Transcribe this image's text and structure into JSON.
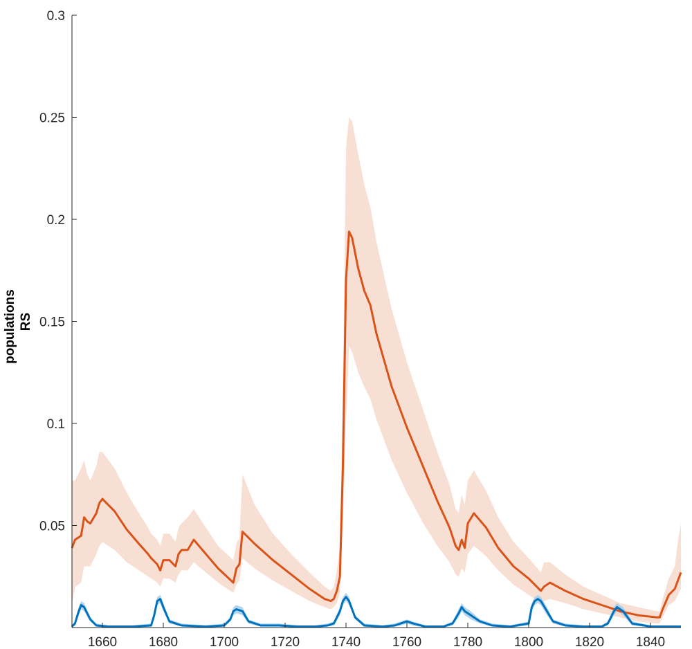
{
  "chart_data": {
    "type": "line",
    "title": "",
    "xlabel": "",
    "ylabel_lines": [
      "populations",
      "RS"
    ],
    "xlim": [
      1650,
      1850
    ],
    "ylim": [
      0,
      0.3
    ],
    "x_ticks": [
      1660,
      1680,
      1700,
      1720,
      1740,
      1760,
      1780,
      1800,
      1820,
      1840
    ],
    "x_tick_labels": [
      "1660",
      "1680",
      "1700",
      "1720",
      "1740",
      "1760",
      "1780",
      "1800",
      "1820",
      "1840"
    ],
    "y_ticks": [
      0.05,
      0.1,
      0.15,
      0.2,
      0.25,
      0.3
    ],
    "y_tick_labels": [
      "0.05",
      "0.1",
      "0.15",
      "0.2",
      "0.25",
      "0.3"
    ],
    "grid": false,
    "legend": "none",
    "series": [
      {
        "color": "#D95319",
        "band_color": "#F7D9CC",
        "x": [
          1650,
          1651,
          1653,
          1654,
          1655,
          1656,
          1658,
          1659,
          1660,
          1664,
          1668,
          1672,
          1675,
          1676,
          1678,
          1679,
          1680,
          1682,
          1684,
          1685,
          1686,
          1688,
          1690,
          1694,
          1698,
          1703,
          1704,
          1705,
          1706,
          1710,
          1716,
          1722,
          1728,
          1733,
          1735,
          1736,
          1737,
          1738,
          1739,
          1740,
          1741,
          1742,
          1744,
          1746,
          1748,
          1750,
          1755,
          1760,
          1765,
          1770,
          1774,
          1776,
          1777,
          1778,
          1779,
          1780,
          1782,
          1786,
          1790,
          1795,
          1800,
          1804,
          1805,
          1807,
          1812,
          1818,
          1824,
          1830,
          1836,
          1842,
          1843,
          1844,
          1846,
          1848,
          1849,
          1850
        ],
        "y": [
          0.039,
          0.043,
          0.045,
          0.054,
          0.052,
          0.051,
          0.056,
          0.061,
          0.063,
          0.057,
          0.048,
          0.041,
          0.036,
          0.034,
          0.031,
          0.028,
          0.033,
          0.033,
          0.03,
          0.036,
          0.038,
          0.038,
          0.043,
          0.036,
          0.029,
          0.022,
          0.029,
          0.031,
          0.047,
          0.041,
          0.033,
          0.026,
          0.019,
          0.014,
          0.013,
          0.014,
          0.018,
          0.025,
          0.08,
          0.17,
          0.194,
          0.191,
          0.176,
          0.165,
          0.158,
          0.144,
          0.118,
          0.098,
          0.08,
          0.062,
          0.049,
          0.04,
          0.038,
          0.043,
          0.039,
          0.051,
          0.056,
          0.049,
          0.039,
          0.03,
          0.024,
          0.018,
          0.02,
          0.022,
          0.018,
          0.014,
          0.011,
          0.008,
          0.006,
          0.005,
          0.005,
          0.009,
          0.016,
          0.019,
          0.023,
          0.027
        ],
        "lower": [
          0.012,
          0.02,
          0.022,
          0.03,
          0.03,
          0.03,
          0.036,
          0.04,
          0.042,
          0.038,
          0.032,
          0.028,
          0.025,
          0.024,
          0.022,
          0.02,
          0.024,
          0.024,
          0.022,
          0.026,
          0.028,
          0.028,
          0.032,
          0.027,
          0.022,
          0.017,
          0.021,
          0.023,
          0.034,
          0.029,
          0.023,
          0.018,
          0.013,
          0.01,
          0.009,
          0.01,
          0.012,
          0.017,
          0.05,
          0.1,
          0.138,
          0.135,
          0.125,
          0.118,
          0.112,
          0.102,
          0.082,
          0.066,
          0.052,
          0.04,
          0.032,
          0.026,
          0.025,
          0.029,
          0.027,
          0.036,
          0.04,
          0.035,
          0.028,
          0.021,
          0.016,
          0.012,
          0.013,
          0.014,
          0.012,
          0.009,
          0.007,
          0.005,
          0.003,
          0.002,
          0.002,
          0.005,
          0.011,
          0.013,
          0.016,
          0.019
        ],
        "upper": [
          0.072,
          0.072,
          0.078,
          0.082,
          0.075,
          0.072,
          0.079,
          0.086,
          0.086,
          0.078,
          0.066,
          0.056,
          0.049,
          0.046,
          0.043,
          0.04,
          0.046,
          0.046,
          0.042,
          0.049,
          0.051,
          0.054,
          0.058,
          0.049,
          0.04,
          0.033,
          0.041,
          0.044,
          0.075,
          0.06,
          0.046,
          0.036,
          0.027,
          0.02,
          0.018,
          0.02,
          0.028,
          0.04,
          0.12,
          0.235,
          0.25,
          0.248,
          0.232,
          0.217,
          0.206,
          0.189,
          0.156,
          0.13,
          0.108,
          0.086,
          0.07,
          0.058,
          0.056,
          0.065,
          0.06,
          0.072,
          0.077,
          0.067,
          0.054,
          0.042,
          0.034,
          0.027,
          0.032,
          0.032,
          0.026,
          0.02,
          0.016,
          0.012,
          0.01,
          0.008,
          0.008,
          0.014,
          0.024,
          0.03,
          0.042,
          0.051
        ]
      },
      {
        "color": "#0072BD",
        "band_color": "#A6CFEB",
        "x": [
          1650,
          1651,
          1652,
          1653,
          1654,
          1656,
          1658,
          1662,
          1670,
          1676,
          1677,
          1678,
          1679,
          1680,
          1682,
          1686,
          1694,
          1700,
          1702,
          1703,
          1704,
          1706,
          1708,
          1712,
          1718,
          1724,
          1730,
          1734,
          1736,
          1738,
          1739,
          1740,
          1741,
          1743,
          1746,
          1752,
          1756,
          1758,
          1760,
          1762,
          1766,
          1772,
          1775,
          1777,
          1778,
          1779,
          1781,
          1784,
          1788,
          1794,
          1800,
          1801,
          1802,
          1803,
          1804,
          1806,
          1808,
          1812,
          1818,
          1824,
          1826,
          1828,
          1829,
          1831,
          1834,
          1840,
          1846,
          1850
        ],
        "y": [
          0.0005,
          0.002,
          0.007,
          0.011,
          0.01,
          0.004,
          0.001,
          0.0005,
          0.0005,
          0.001,
          0.006,
          0.013,
          0.014,
          0.01,
          0.003,
          0.001,
          0.0005,
          0.001,
          0.004,
          0.008,
          0.009,
          0.008,
          0.003,
          0.001,
          0.001,
          0.0005,
          0.0005,
          0.001,
          0.002,
          0.008,
          0.013,
          0.015,
          0.013,
          0.005,
          0.001,
          0.0005,
          0.001,
          0.002,
          0.003,
          0.002,
          0.0005,
          0.0005,
          0.002,
          0.007,
          0.01,
          0.008,
          0.006,
          0.003,
          0.001,
          0.0005,
          0.002,
          0.01,
          0.013,
          0.014,
          0.013,
          0.008,
          0.003,
          0.001,
          0.0005,
          0.0005,
          0.002,
          0.008,
          0.01,
          0.008,
          0.002,
          0.0005,
          0.0005,
          0.0005
        ],
        "lower": [
          0.0,
          0.001,
          0.005,
          0.009,
          0.008,
          0.003,
          0.0005,
          0.0,
          0.0,
          0.0005,
          0.004,
          0.011,
          0.012,
          0.008,
          0.002,
          0.0005,
          0.0,
          0.0005,
          0.003,
          0.006,
          0.007,
          0.006,
          0.002,
          0.0005,
          0.0005,
          0.0,
          0.0,
          0.0005,
          0.001,
          0.006,
          0.011,
          0.013,
          0.011,
          0.004,
          0.0005,
          0.0,
          0.0005,
          0.001,
          0.002,
          0.001,
          0.0,
          0.0,
          0.001,
          0.005,
          0.008,
          0.006,
          0.004,
          0.002,
          0.0005,
          0.0,
          0.001,
          0.008,
          0.011,
          0.012,
          0.011,
          0.006,
          0.002,
          0.0005,
          0.0,
          0.0,
          0.001,
          0.006,
          0.008,
          0.006,
          0.001,
          0.0,
          0.0,
          0.0
        ],
        "upper": [
          0.001,
          0.003,
          0.009,
          0.013,
          0.012,
          0.005,
          0.002,
          0.001,
          0.001,
          0.002,
          0.008,
          0.015,
          0.016,
          0.012,
          0.004,
          0.002,
          0.001,
          0.002,
          0.005,
          0.01,
          0.011,
          0.01,
          0.004,
          0.002,
          0.002,
          0.001,
          0.001,
          0.002,
          0.003,
          0.01,
          0.015,
          0.017,
          0.015,
          0.006,
          0.002,
          0.001,
          0.002,
          0.003,
          0.004,
          0.003,
          0.001,
          0.001,
          0.003,
          0.009,
          0.012,
          0.01,
          0.008,
          0.004,
          0.002,
          0.001,
          0.003,
          0.012,
          0.015,
          0.016,
          0.015,
          0.01,
          0.004,
          0.002,
          0.001,
          0.001,
          0.003,
          0.01,
          0.012,
          0.01,
          0.003,
          0.001,
          0.001,
          0.001
        ]
      }
    ]
  }
}
